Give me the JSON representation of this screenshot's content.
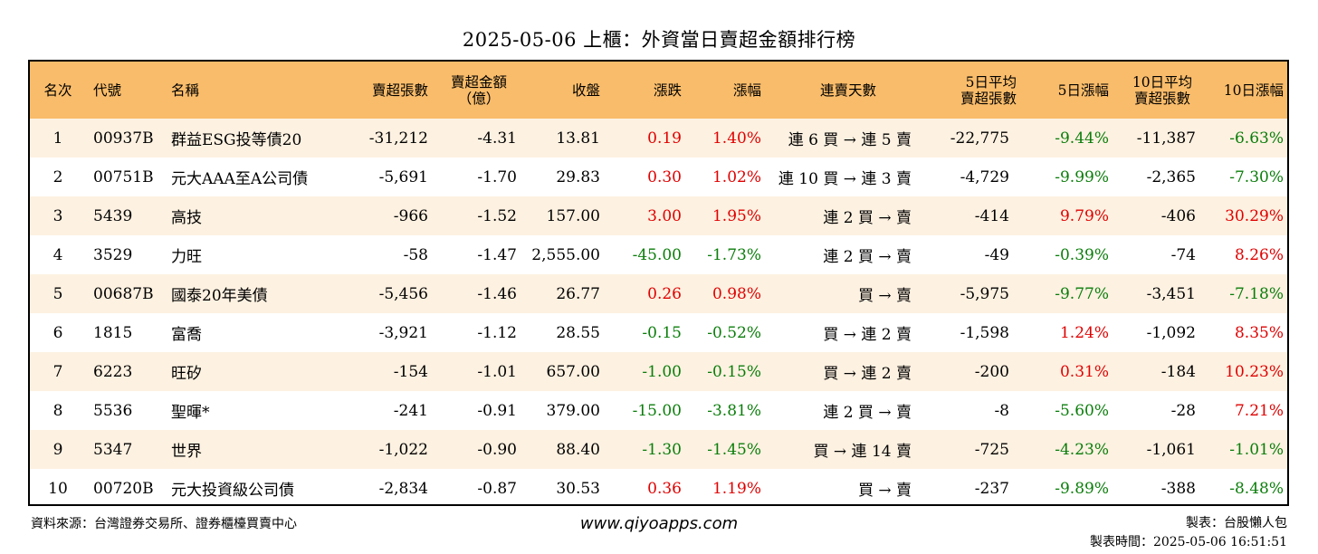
{
  "title": "2025-05-06 上櫃：外資當日賣超金額排行榜",
  "headers": {
    "rank": "名次",
    "code": "代號",
    "name": "名稱",
    "sell_shares": "賣超張數",
    "sell_amount_1": "賣超金額",
    "sell_amount_2": "（億）",
    "close": "收盤",
    "change": "漲跌",
    "change_pct": "漲幅",
    "streak": "連賣天數",
    "avg5_1": "5日平均",
    "avg5_2": "賣超張數",
    "pct5": "5日漲幅",
    "avg10_1": "10日平均",
    "avg10_2": "賣超張數",
    "pct10": "10日漲幅"
  },
  "colors": {
    "header_bg": "#f9bc6a",
    "stripe_bg": "#fdf1e1",
    "up": "#e00000",
    "down": "#0a7d0a"
  },
  "rows": [
    {
      "rank": "1",
      "code": "00937B",
      "name": "群益ESG投等債20",
      "sell_shares": "-31,212",
      "sell_amount": "-4.31",
      "close": "13.81",
      "change": "0.19",
      "change_pct": "1.40%",
      "streak": "連 6 買 → 連 5 賣",
      "avg5": "-22,775",
      "pct5": "-9.44%",
      "avg10": "-11,387",
      "pct10": "-6.63%",
      "change_color": "red",
      "pct5_color": "green",
      "pct10_color": "green"
    },
    {
      "rank": "2",
      "code": "00751B",
      "name": "元大AAA至A公司債",
      "sell_shares": "-5,691",
      "sell_amount": "-1.70",
      "close": "29.83",
      "change": "0.30",
      "change_pct": "1.02%",
      "streak": "連 10 買 → 連 3 賣",
      "avg5": "-4,729",
      "pct5": "-9.99%",
      "avg10": "-2,365",
      "pct10": "-7.30%",
      "change_color": "red",
      "pct5_color": "green",
      "pct10_color": "green"
    },
    {
      "rank": "3",
      "code": "5439",
      "name": "高技",
      "sell_shares": "-966",
      "sell_amount": "-1.52",
      "close": "157.00",
      "change": "3.00",
      "change_pct": "1.95%",
      "streak": "連 2 買 → 賣",
      "avg5": "-414",
      "pct5": "9.79%",
      "avg10": "-406",
      "pct10": "30.29%",
      "change_color": "red",
      "pct5_color": "red",
      "pct10_color": "red"
    },
    {
      "rank": "4",
      "code": "3529",
      "name": "力旺",
      "sell_shares": "-58",
      "sell_amount": "-1.47",
      "close": "2,555.00",
      "change": "-45.00",
      "change_pct": "-1.73%",
      "streak": "連 2 買 → 賣",
      "avg5": "-49",
      "pct5": "-0.39%",
      "avg10": "-74",
      "pct10": "8.26%",
      "change_color": "green",
      "pct5_color": "green",
      "pct10_color": "red"
    },
    {
      "rank": "5",
      "code": "00687B",
      "name": "國泰20年美債",
      "sell_shares": "-5,456",
      "sell_amount": "-1.46",
      "close": "26.77",
      "change": "0.26",
      "change_pct": "0.98%",
      "streak": "買 → 賣",
      "avg5": "-5,975",
      "pct5": "-9.77%",
      "avg10": "-3,451",
      "pct10": "-7.18%",
      "change_color": "red",
      "pct5_color": "green",
      "pct10_color": "green"
    },
    {
      "rank": "6",
      "code": "1815",
      "name": "富喬",
      "sell_shares": "-3,921",
      "sell_amount": "-1.12",
      "close": "28.55",
      "change": "-0.15",
      "change_pct": "-0.52%",
      "streak": "買 → 連 2 賣",
      "avg5": "-1,598",
      "pct5": "1.24%",
      "avg10": "-1,092",
      "pct10": "8.35%",
      "change_color": "green",
      "pct5_color": "red",
      "pct10_color": "red"
    },
    {
      "rank": "7",
      "code": "6223",
      "name": "旺矽",
      "sell_shares": "-154",
      "sell_amount": "-1.01",
      "close": "657.00",
      "change": "-1.00",
      "change_pct": "-0.15%",
      "streak": "買 → 連 2 賣",
      "avg5": "-200",
      "pct5": "0.31%",
      "avg10": "-184",
      "pct10": "10.23%",
      "change_color": "green",
      "pct5_color": "red",
      "pct10_color": "red"
    },
    {
      "rank": "8",
      "code": "5536",
      "name": "聖暉*",
      "sell_shares": "-241",
      "sell_amount": "-0.91",
      "close": "379.00",
      "change": "-15.00",
      "change_pct": "-3.81%",
      "streak": "連 2 買 → 賣",
      "avg5": "-8",
      "pct5": "-5.60%",
      "avg10": "-28",
      "pct10": "7.21%",
      "change_color": "green",
      "pct5_color": "green",
      "pct10_color": "red"
    },
    {
      "rank": "9",
      "code": "5347",
      "name": "世界",
      "sell_shares": "-1,022",
      "sell_amount": "-0.90",
      "close": "88.40",
      "change": "-1.30",
      "change_pct": "-1.45%",
      "streak": "買 → 連 14 賣",
      "avg5": "-725",
      "pct5": "-4.23%",
      "avg10": "-1,061",
      "pct10": "-1.01%",
      "change_color": "green",
      "pct5_color": "green",
      "pct10_color": "green"
    },
    {
      "rank": "10",
      "code": "00720B",
      "name": "元大投資級公司債",
      "sell_shares": "-2,834",
      "sell_amount": "-0.87",
      "close": "30.53",
      "change": "0.36",
      "change_pct": "1.19%",
      "streak": "買 → 賣",
      "avg5": "-237",
      "pct5": "-9.89%",
      "avg10": "-388",
      "pct10": "-8.48%",
      "change_color": "red",
      "pct5_color": "green",
      "pct10_color": "green"
    }
  ],
  "footer": {
    "source": "資料來源：台灣證券交易所、證券櫃檯買賣中心",
    "site": "www.qiyoapps.com",
    "maker": "製表：台股懶人包",
    "time": "製表時間：2025-05-06 16:51:51"
  }
}
